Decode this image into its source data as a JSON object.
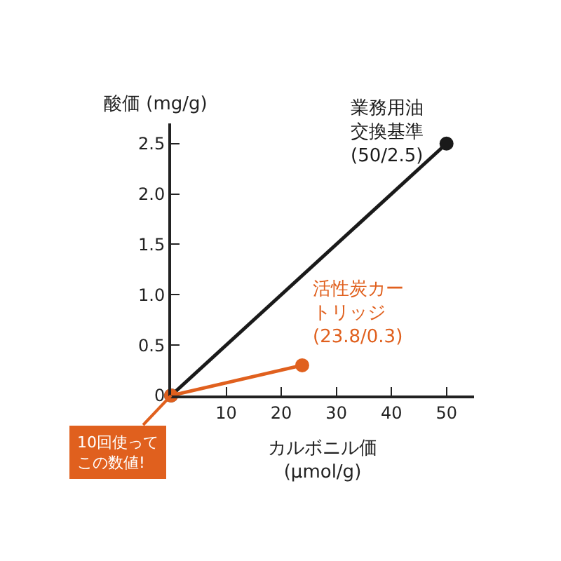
{
  "chart_data": {
    "type": "line",
    "xlabel": "カルボニル価\n(μmol/g)",
    "ylabel": "酸価 (mg/g)",
    "series": [
      {
        "color": "#1a1a1a",
        "x": [
          0,
          50
        ],
        "values": [
          0,
          2.5
        ]
      },
      {
        "color": "#e0601e",
        "x": [
          0,
          23.8
        ],
        "values": [
          0,
          0.3
        ]
      }
    ],
    "xlim": [
      0,
      55
    ],
    "xticks": [
      10,
      20,
      30,
      40,
      50
    ],
    "ylim": [
      0,
      2.7
    ],
    "yticks": [
      0,
      {
        "value": 0.5,
        "label": "0.5"
      },
      {
        "value": 1,
        "label": "1.0"
      },
      {
        "value": 1.5,
        "label": "1.5"
      },
      {
        "value": 2,
        "label": "2.0"
      },
      {
        "value": 2.5,
        "label": "2.5"
      }
    ],
    "annotations": [
      {
        "text": "業務用油交換基準(50/2.5)",
        "x": 50,
        "y": 2.5
      },
      {
        "text": "活性炭カートリッジ(23.8/0.3)",
        "x": 23.8,
        "y": 0.3
      },
      {
        "text": "10回使ってこの数値!",
        "x": 0,
        "y": 0
      }
    ],
    "marker": "circle",
    "line_style": "solid",
    "grid": false
  }
}
